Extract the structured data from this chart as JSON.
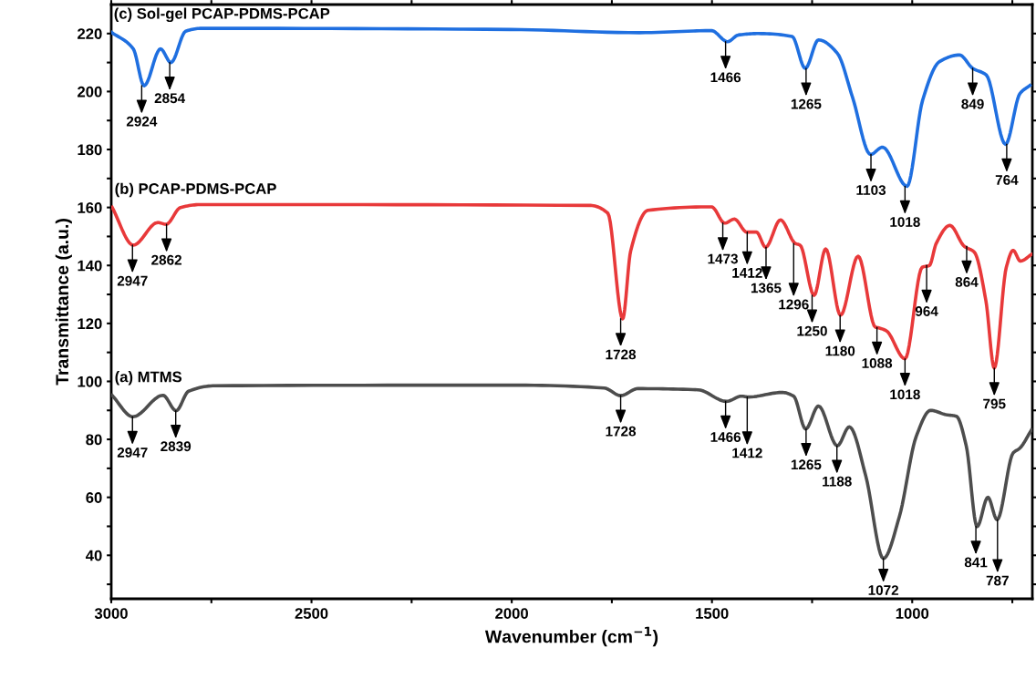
{
  "chart_data": {
    "type": "line",
    "xlabel": "Wavenumber (cm$^{−1}$)",
    "ylabel": "Transmittance (a.u.)",
    "xlim": [
      3000,
      700
    ],
    "ylim": [
      25,
      230
    ],
    "xticks": [
      3000,
      {
        "value": 2750,
        "label": null
      },
      2500,
      {
        "value": 2250,
        "label": null
      },
      2000,
      {
        "value": 1750,
        "label": null
      },
      1500,
      {
        "value": 1250,
        "label": null
      },
      1000,
      {
        "value": 750,
        "label": null
      }
    ],
    "yticks": [
      {
        "value": 30,
        "label": null
      },
      40,
      {
        "value": 50,
        "label": null
      },
      60,
      {
        "value": 70,
        "label": null
      },
      80,
      {
        "value": 90,
        "label": null
      },
      100,
      {
        "value": 110,
        "label": null
      },
      120,
      {
        "value": 130,
        "label": null
      },
      140,
      {
        "value": 150,
        "label": null
      },
      160,
      {
        "value": 170,
        "label": null
      },
      180,
      {
        "value": 190,
        "label": null
      },
      200,
      {
        "value": 210,
        "label": null
      },
      220
    ],
    "grid": false,
    "marker": "none",
    "line_style": "solid",
    "series": [
      {
        "name": "(c) Sol-gel PCAP-PDMS-PCAP",
        "color": "#1f6fe0",
        "x": [
          3000,
          2945,
          2918,
          2877,
          2851,
          2814,
          2775,
          2003,
          1681,
          1501,
          1461,
          1434,
          1384,
          1300,
          1267,
          1234,
          1187,
          1149,
          1104,
          1074,
          1013,
          974,
          932,
          882,
          849,
          815,
          767,
          731,
          706
        ],
        "values": [
          220.5,
          214.7,
          202,
          214.7,
          210,
          220.8,
          221.8,
          221.4,
          220.3,
          221,
          217.2,
          219.5,
          220,
          219,
          208,
          217.8,
          213.2,
          198,
          178.3,
          180.8,
          167.3,
          197,
          210.3,
          212.6,
          208,
          205.7,
          181.8,
          199.3,
          202.1
        ]
      },
      {
        "name": "(b) PCAP-PDMS-PCAP",
        "color": "#e8393a",
        "x": [
          2998,
          2945,
          2884,
          2863,
          2827,
          2775,
          1803,
          1760,
          1723,
          1703,
          1660,
          1501,
          1468,
          1444,
          1413,
          1389,
          1366,
          1329,
          1292,
          1280,
          1245,
          1216,
          1179,
          1135,
          1092,
          1085,
          1065,
          1018,
          975,
          957,
          940,
          906,
          870,
          845,
          816,
          795,
          765,
          748,
          730,
          702
        ],
        "values": [
          160.1,
          147,
          154.8,
          154.2,
          160,
          161,
          160.7,
          158,
          121.6,
          145,
          159,
          160.2,
          154.6,
          156,
          151.5,
          151.5,
          146.3,
          155.7,
          147.6,
          147,
          129.7,
          145.7,
          122.8,
          143.2,
          118.7,
          118.5,
          117.5,
          107.8,
          139.4,
          140,
          147.6,
          153.8,
          146.6,
          144.6,
          127.8,
          104.6,
          139.4,
          145.2,
          141.5,
          143.8
        ]
      },
      {
        "name": "(a) MTMS",
        "color": "#4d4d4d",
        "x": [
          2998,
          2946,
          2871,
          2838,
          2807,
          2741,
          2003,
          1769,
          1728,
          1685,
          1535,
          1464,
          1426,
          1409,
          1325,
          1296,
          1266,
          1234,
          1187,
          1157,
          1116,
          1072,
          1032,
          990,
          954,
          915,
          890,
          865,
          838,
          811,
          788,
          748,
          731,
          702
        ],
        "values": [
          95.2,
          87.8,
          95.2,
          89.9,
          96.6,
          98.5,
          98.7,
          97.7,
          95.1,
          97.5,
          97.1,
          93.1,
          94.9,
          94.6,
          96.2,
          94.9,
          83.6,
          91.5,
          77.8,
          84.3,
          67.4,
          38.9,
          53.4,
          81,
          90,
          88.5,
          88,
          77.7,
          49.9,
          60,
          52.3,
          75.3,
          77,
          83.3
        ]
      }
    ],
    "annotations": [
      {
        "text": "2924",
        "x": 2924,
        "y": 202
      },
      {
        "text": "2854",
        "x": 2854,
        "y": 210
      },
      {
        "text": "1466",
        "x": 1466,
        "y": 217.2
      },
      {
        "text": "1265",
        "x": 1265,
        "y": 208
      },
      {
        "text": "1103",
        "x": 1103,
        "y": 178.3
      },
      {
        "text": "1018",
        "x": 1018,
        "y": 167.3
      },
      {
        "text": "849",
        "x": 849,
        "y": 208
      },
      {
        "text": "764",
        "x": 764,
        "y": 181.8
      },
      {
        "text": "2947",
        "x": 2947,
        "y": 147
      },
      {
        "text": "2862",
        "x": 2862,
        "y": 154.2
      },
      {
        "text": "1728",
        "x": 1728,
        "y": 121.6
      },
      {
        "text": "1473",
        "x": 1473,
        "y": 154.6
      },
      {
        "text": "1412",
        "x": 1412,
        "y": 151.5
      },
      {
        "text": "1365",
        "x": 1365,
        "y": 146.3
      },
      {
        "text": "1296",
        "x": 1296,
        "y": 147.6
      },
      {
        "text": "1250",
        "x": 1250,
        "y": 129.7
      },
      {
        "text": "1180",
        "x": 1180,
        "y": 122.8
      },
      {
        "text": "1088",
        "x": 1088,
        "y": 118.6
      },
      {
        "text": "1018",
        "x": 1018,
        "y": 107.8
      },
      {
        "text": "964",
        "x": 964,
        "y": 140
      },
      {
        "text": "864",
        "x": 864,
        "y": 146.6
      },
      {
        "text": "795",
        "x": 795,
        "y": 104.6
      },
      {
        "text": "2947",
        "x": 2947,
        "y": 87.8
      },
      {
        "text": "2839",
        "x": 2839,
        "y": 89.9
      },
      {
        "text": "1728",
        "x": 1728,
        "y": 95.1
      },
      {
        "text": "1466",
        "x": 1466,
        "y": 93.1
      },
      {
        "text": "1412",
        "x": 1412,
        "y": 94.6
      },
      {
        "text": "1265",
        "x": 1265,
        "y": 83.6
      },
      {
        "text": "1188",
        "x": 1188,
        "y": 77.8
      },
      {
        "text": "1072",
        "x": 1072,
        "y": 38.9
      },
      {
        "text": "841",
        "x": 841,
        "y": 49.9
      },
      {
        "text": "787",
        "x": 787,
        "y": 52.3
      }
    ]
  }
}
